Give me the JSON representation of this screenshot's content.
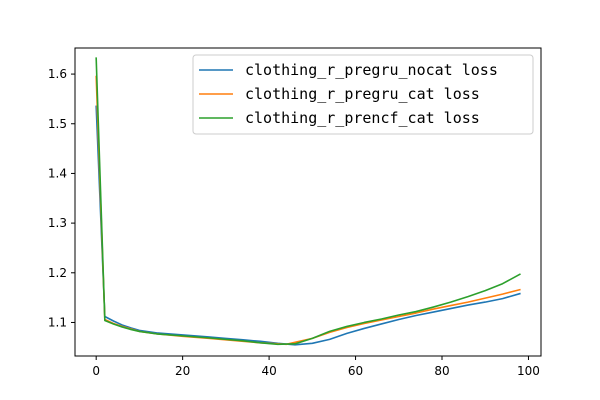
{
  "chart_data": {
    "type": "line",
    "title": "",
    "xlabel": "",
    "ylabel": "",
    "xlim": [
      -4.9,
      102.9
    ],
    "ylim": [
      1.0325,
      1.6525
    ],
    "xticks": [
      0,
      20,
      40,
      60,
      80,
      100
    ],
    "yticks": [
      1.1,
      1.2,
      1.3,
      1.4,
      1.5,
      1.6
    ],
    "xtick_labels": [
      "0",
      "20",
      "40",
      "60",
      "80",
      "100"
    ],
    "ytick_labels": [
      "1.1",
      "1.2",
      "1.3",
      "1.4",
      "1.5",
      "1.6"
    ],
    "grid": false,
    "legend_position": "top-right",
    "series": [
      {
        "name": "clothing_r_pregru_nocat loss",
        "color": "#1f77b4",
        "x": [
          0,
          2,
          4,
          6,
          8,
          10,
          14,
          20,
          26,
          30,
          34,
          38,
          42,
          46,
          50,
          54,
          58,
          62,
          66,
          70,
          74,
          78,
          82,
          86,
          90,
          94,
          98
        ],
        "y": [
          1.535,
          1.112,
          1.103,
          1.095,
          1.089,
          1.084,
          1.079,
          1.075,
          1.071,
          1.068,
          1.065,
          1.062,
          1.058,
          1.055,
          1.058,
          1.066,
          1.078,
          1.088,
          1.097,
          1.106,
          1.114,
          1.121,
          1.128,
          1.135,
          1.141,
          1.148,
          1.158
        ]
      },
      {
        "name": "clothing_r_pregru_cat loss",
        "color": "#ff7f0e",
        "x": [
          0,
          2,
          4,
          6,
          8,
          10,
          14,
          20,
          26,
          30,
          34,
          38,
          42,
          44,
          46,
          50,
          54,
          58,
          62,
          66,
          70,
          74,
          78,
          82,
          86,
          90,
          94,
          98
        ],
        "y": [
          1.595,
          1.106,
          1.098,
          1.092,
          1.087,
          1.082,
          1.077,
          1.072,
          1.068,
          1.065,
          1.062,
          1.059,
          1.057,
          1.056,
          1.06,
          1.068,
          1.08,
          1.09,
          1.098,
          1.105,
          1.112,
          1.119,
          1.127,
          1.134,
          1.141,
          1.149,
          1.157,
          1.166
        ]
      },
      {
        "name": "clothing_r_prencf_cat loss",
        "color": "#2ca02c",
        "x": [
          0,
          2,
          4,
          6,
          8,
          10,
          14,
          20,
          26,
          30,
          34,
          38,
          42,
          46,
          50,
          54,
          58,
          62,
          66,
          70,
          74,
          78,
          82,
          86,
          90,
          94,
          98
        ],
        "y": [
          1.632,
          1.104,
          1.097,
          1.091,
          1.086,
          1.082,
          1.077,
          1.073,
          1.069,
          1.066,
          1.063,
          1.059,
          1.056,
          1.057,
          1.068,
          1.082,
          1.092,
          1.1,
          1.107,
          1.115,
          1.122,
          1.131,
          1.141,
          1.152,
          1.164,
          1.178,
          1.197
        ]
      }
    ]
  }
}
